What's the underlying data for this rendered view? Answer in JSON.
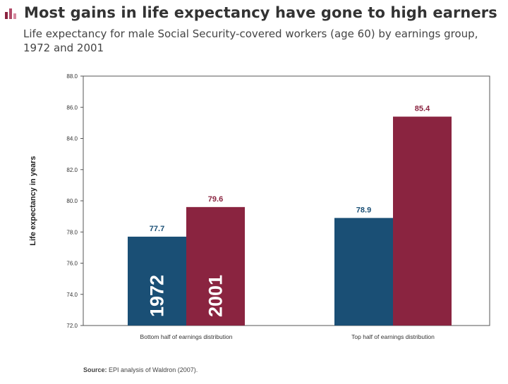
{
  "title": "Most gains in life expectancy have gone to high earners",
  "subtitle": "Life expectancy for male Social Security-covered workers (age 60) by earnings group, 1972 and 2001",
  "source_label": "Source:",
  "source_text": "EPI analysis of Waldron (2007).",
  "icon": "bar-chart-icon",
  "colors": {
    "series_1972": "#1a4f75",
    "series_2001": "#8a2440",
    "frame": "#555555"
  },
  "chart_data": {
    "type": "bar",
    "title": "",
    "xlabel": "",
    "ylabel": "Life expectancy in years",
    "ylim": [
      72,
      88
    ],
    "yticks": [
      "72.0",
      "74.0",
      "76.0",
      "78.0",
      "80.0",
      "82.0",
      "84.0",
      "86.0",
      "88.0"
    ],
    "categories": [
      "Bottom half of earnings distribution",
      "Top half of earnings distribution"
    ],
    "series": [
      {
        "name": "1972",
        "values": [
          77.7,
          78.9
        ],
        "labels": [
          "77.7",
          "78.9"
        ]
      },
      {
        "name": "2001",
        "values": [
          79.6,
          85.4
        ],
        "labels": [
          "79.6",
          "85.4"
        ]
      }
    ],
    "grid": false,
    "legend": "none"
  }
}
